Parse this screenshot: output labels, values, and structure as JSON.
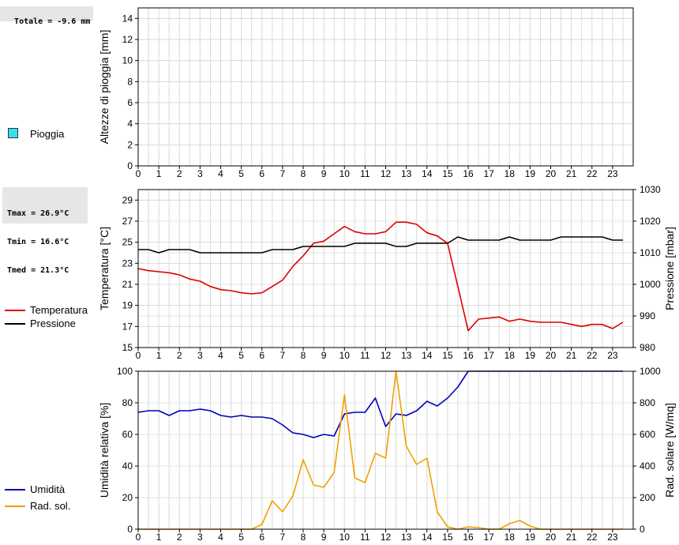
{
  "totals": {
    "text": "Totale = -9.6 mm"
  },
  "temp_stats": {
    "tmax": "Tmax = 26.9°C",
    "tmin": "Tmin = 16.6°C",
    "tmed": "Tmed = 21.3°C"
  },
  "legends": {
    "rain": {
      "label": "Pioggia",
      "color": "#33e0f0"
    },
    "temperature": {
      "label": "Temperatura",
      "color": "#dd0000"
    },
    "pressure": {
      "label": "Pressione",
      "color": "#000000"
    },
    "humidity": {
      "label": "Umidità",
      "color": "#0000bb"
    },
    "radiation": {
      "label": "Rad. sol.",
      "color": "#f0a000"
    }
  },
  "chart_data": [
    {
      "type": "bar",
      "ylabel": "Altezze di pioggia [mm]",
      "xlim": [
        0,
        24
      ],
      "xticks": [
        "0",
        "1",
        "2",
        "3",
        "4",
        "5",
        "6",
        "7",
        "8",
        "9",
        "10",
        "11",
        "12",
        "13",
        "14",
        "15",
        "16",
        "17",
        "18",
        "19",
        "20",
        "21",
        "22",
        "23"
      ],
      "ylim": [
        0,
        15
      ],
      "yticks": [
        "0",
        "2",
        "4",
        "6",
        "8",
        "10",
        "12",
        "14"
      ],
      "series": [
        {
          "name": "Pioggia",
          "values": []
        }
      ],
      "grid": true
    },
    {
      "type": "line",
      "ylabel": "Temperatura [°C]",
      "y2label": "Pressione [mbar]",
      "xlim": [
        0,
        24
      ],
      "xticks": [
        "0",
        "1",
        "2",
        "3",
        "4",
        "5",
        "6",
        "7",
        "8",
        "9",
        "10",
        "11",
        "12",
        "13",
        "14",
        "15",
        "16",
        "17",
        "18",
        "19",
        "20",
        "21",
        "22",
        "23"
      ],
      "ylim": [
        15,
        30
      ],
      "yticks": [
        "15",
        "17",
        "19",
        "21",
        "23",
        "25",
        "27",
        "29"
      ],
      "y2lim": [
        980,
        1030
      ],
      "y2ticks": [
        "980",
        "990",
        "1000",
        "1010",
        "1020",
        "1030"
      ],
      "series": [
        {
          "name": "Temperatura",
          "axis": "left",
          "x": [
            0,
            0.5,
            1,
            1.5,
            2,
            2.5,
            3,
            3.5,
            4,
            4.5,
            5,
            5.5,
            6,
            6.5,
            7,
            7.5,
            8,
            8.5,
            9,
            9.5,
            10,
            10.5,
            11,
            11.5,
            12,
            12.5,
            13,
            13.5,
            14,
            14.5,
            15,
            15.5,
            16,
            16.5,
            17,
            17.5,
            18,
            18.5,
            19,
            19.5,
            20,
            20.5,
            21,
            21.5,
            22,
            22.5,
            23,
            23.5
          ],
          "values": [
            22.5,
            22.3,
            22.2,
            22.1,
            21.9,
            21.5,
            21.3,
            20.8,
            20.5,
            20.4,
            20.2,
            20.1,
            20.2,
            20.8,
            21.4,
            22.7,
            23.7,
            24.9,
            25.1,
            25.8,
            26.5,
            26.0,
            25.8,
            25.8,
            26.0,
            26.9,
            26.9,
            26.7,
            25.9,
            25.6,
            24.9,
            20.8,
            16.6,
            17.7,
            17.8,
            17.9,
            17.5,
            17.7,
            17.5,
            17.4,
            17.4,
            17.4,
            17.2,
            17.0,
            17.2,
            17.2,
            16.8,
            17.4
          ]
        },
        {
          "name": "Pressione",
          "axis": "right",
          "x": [
            0,
            0.5,
            1,
            1.5,
            2,
            2.5,
            3,
            3.5,
            4,
            4.5,
            5,
            5.5,
            6,
            6.5,
            7,
            7.5,
            8,
            8.5,
            9,
            9.5,
            10,
            10.5,
            11,
            11.5,
            12,
            12.5,
            13,
            13.5,
            14,
            14.5,
            15,
            15.5,
            16,
            16.5,
            17,
            17.5,
            18,
            18.5,
            19,
            19.5,
            20,
            20.5,
            21,
            21.5,
            22,
            22.5,
            23,
            23.5
          ],
          "values": [
            1011,
            1011,
            1010,
            1011,
            1011,
            1011,
            1010,
            1010,
            1010,
            1010,
            1010,
            1010,
            1010,
            1011,
            1011,
            1011,
            1012,
            1012,
            1012,
            1012,
            1012,
            1013,
            1013,
            1013,
            1013,
            1012,
            1012,
            1013,
            1013,
            1013,
            1013,
            1015,
            1014,
            1014,
            1014,
            1014,
            1015,
            1014,
            1014,
            1014,
            1014,
            1015,
            1015,
            1015,
            1015,
            1015,
            1014,
            1014
          ]
        }
      ],
      "grid": true
    },
    {
      "type": "line",
      "ylabel": "Umidità relativa [%]",
      "y2label": "Rad. solare [W/mq]",
      "xlim": [
        0,
        24
      ],
      "xticks": [
        "0",
        "1",
        "2",
        "3",
        "4",
        "5",
        "6",
        "7",
        "8",
        "9",
        "10",
        "11",
        "12",
        "13",
        "14",
        "15",
        "16",
        "17",
        "18",
        "19",
        "20",
        "21",
        "22",
        "23"
      ],
      "ylim": [
        0,
        100
      ],
      "yticks": [
        "0",
        "20",
        "40",
        "60",
        "80",
        "100"
      ],
      "y2lim": [
        0,
        1000
      ],
      "y2ticks": [
        "0",
        "200",
        "400",
        "600",
        "800",
        "1000"
      ],
      "series": [
        {
          "name": "Umidità",
          "axis": "left",
          "x": [
            0,
            0.5,
            1,
            1.5,
            2,
            2.5,
            3,
            3.5,
            4,
            4.5,
            5,
            5.5,
            6,
            6.5,
            7,
            7.5,
            8,
            8.5,
            9,
            9.5,
            10,
            10.5,
            11,
            11.5,
            12,
            12.5,
            13,
            13.5,
            14,
            14.5,
            15,
            15.5,
            16,
            16.5,
            17,
            17.5,
            18,
            18.5,
            19,
            19.5,
            20,
            20.5,
            21,
            21.5,
            22,
            22.5,
            23,
            23.5
          ],
          "values": [
            74,
            75,
            75,
            72,
            75,
            75,
            76,
            75,
            72,
            71,
            72,
            71,
            71,
            70,
            66,
            61,
            60,
            58,
            60,
            59,
            73,
            74,
            74,
            83,
            65,
            73,
            72,
            75,
            81,
            78,
            83,
            90,
            100,
            100,
            100,
            100,
            100,
            100,
            100,
            100,
            100,
            100,
            100,
            100,
            100,
            100,
            100,
            100
          ]
        },
        {
          "name": "Rad. sol.",
          "axis": "right",
          "x": [
            0,
            0.5,
            1,
            1.5,
            2,
            2.5,
            3,
            3.5,
            4,
            4.5,
            5,
            5.5,
            6,
            6.5,
            7,
            7.5,
            8,
            8.5,
            9,
            9.5,
            10,
            10.5,
            11,
            11.5,
            12,
            12.5,
            13,
            13.5,
            14,
            14.5,
            15,
            15.5,
            16,
            16.5,
            17,
            17.5,
            18,
            18.5,
            19,
            19.5,
            20,
            20.5,
            21,
            21.5,
            22,
            22.5,
            23,
            23.5
          ],
          "values": [
            0,
            0,
            0,
            0,
            0,
            0,
            0,
            0,
            0,
            0,
            0,
            0,
            30,
            180,
            110,
            210,
            440,
            280,
            265,
            360,
            850,
            325,
            295,
            480,
            450,
            1000,
            525,
            410,
            450,
            110,
            15,
            0,
            15,
            10,
            0,
            0,
            35,
            55,
            20,
            0,
            0,
            0,
            0,
            0,
            0,
            0,
            0,
            0
          ]
        }
      ],
      "grid": true
    }
  ]
}
